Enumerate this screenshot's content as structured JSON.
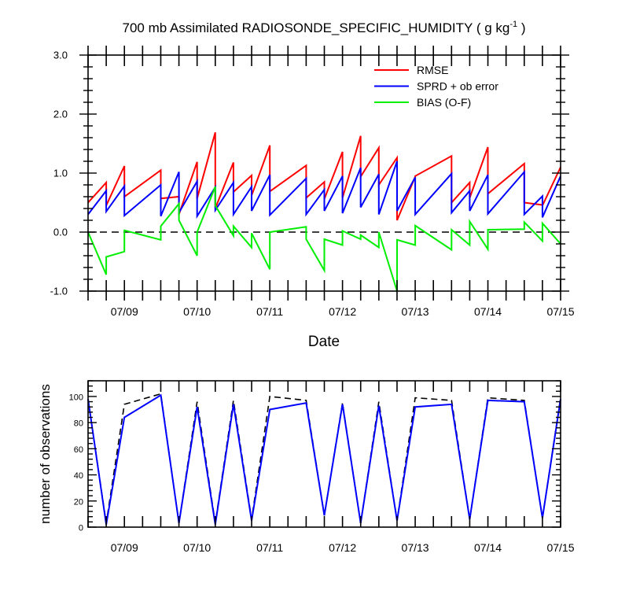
{
  "chart_data": [
    {
      "type": "line",
      "title": "700 mb Assimilated RADIOSONDE_SPECIFIC_HUMIDITY",
      "title_units": "( g kg",
      "title_units_exp": "-1",
      "title_units_close": " )",
      "xlabel": "Date",
      "ylabel": "",
      "xlim": [
        8.5,
        15.0
      ],
      "ylim": [
        -1.0,
        3.0
      ],
      "yticks": [
        "-1.0",
        "0.0",
        "1.0",
        "2.0",
        "3.0"
      ],
      "ytick_values": [
        -1.0,
        0.0,
        1.0,
        2.0,
        3.0
      ],
      "xticks": [
        "07/09",
        "07/10",
        "07/11",
        "07/12",
        "07/13",
        "07/14",
        "07/15"
      ],
      "xtick_values": [
        9,
        10,
        11,
        12,
        13,
        14,
        15
      ],
      "zero_line": true,
      "grid": false,
      "legend_position": "top-right",
      "series": [
        {
          "name": "RMSE",
          "color": "#ff0000",
          "x": [
            8.5,
            8.75,
            8.75,
            9.0,
            9.0,
            9.5,
            9.5,
            9.75,
            9.75,
            10.0,
            10.0,
            10.25,
            10.25,
            10.5,
            10.5,
            10.75,
            10.75,
            11.0,
            11.0,
            11.5,
            11.5,
            11.75,
            11.75,
            12.0,
            12.0,
            12.25,
            12.25,
            12.5,
            12.5,
            12.75,
            12.75,
            13.0,
            13.0,
            13.5,
            13.5,
            13.75,
            13.75,
            14.0,
            14.0,
            14.5,
            14.5,
            14.75,
            14.75,
            15.0
          ],
          "y": [
            0.5,
            0.84,
            0.45,
            1.12,
            0.6,
            1.05,
            0.57,
            0.6,
            0.3,
            1.19,
            0.57,
            1.69,
            0.4,
            1.18,
            0.68,
            0.96,
            0.62,
            1.47,
            0.69,
            1.13,
            0.58,
            0.85,
            0.56,
            1.36,
            0.58,
            1.63,
            0.94,
            1.43,
            0.8,
            1.26,
            0.2,
            0.94,
            0.95,
            1.29,
            0.5,
            0.84,
            0.58,
            1.44,
            0.65,
            1.16,
            0.5,
            0.46,
            0.45,
            1.1
          ]
        },
        {
          "name": "SPRD + ob error",
          "color": "#0000ff",
          "x": [
            8.5,
            8.75,
            8.75,
            9.0,
            9.0,
            9.5,
            9.5,
            9.75,
            9.75,
            10.0,
            10.0,
            10.25,
            10.25,
            10.5,
            10.5,
            10.75,
            10.75,
            11.0,
            11.0,
            11.5,
            11.5,
            11.75,
            11.75,
            12.0,
            12.0,
            12.25,
            12.25,
            12.5,
            12.5,
            12.75,
            12.75,
            13.0,
            13.0,
            13.5,
            13.5,
            13.75,
            13.75,
            14.0,
            14.0,
            14.5,
            14.5,
            14.75,
            14.75,
            15.0
          ],
          "y": [
            0.3,
            0.7,
            0.35,
            0.78,
            0.28,
            0.8,
            0.27,
            1.02,
            0.33,
            0.86,
            0.27,
            0.76,
            0.37,
            0.84,
            0.3,
            0.77,
            0.36,
            0.97,
            0.29,
            0.91,
            0.3,
            0.72,
            0.36,
            0.95,
            0.32,
            1.09,
            0.42,
            0.98,
            0.3,
            1.2,
            0.36,
            0.93,
            0.3,
            0.99,
            0.33,
            0.7,
            0.36,
            0.97,
            0.31,
            1.02,
            0.3,
            0.61,
            0.25,
            0.95
          ]
        },
        {
          "name": "BIAS (O-F)",
          "color": "#00ee00",
          "x": [
            8.5,
            8.75,
            8.75,
            9.0,
            9.0,
            9.5,
            9.5,
            9.75,
            9.75,
            10.0,
            10.0,
            10.25,
            10.25,
            10.5,
            10.5,
            10.75,
            10.75,
            11.0,
            11.0,
            11.5,
            11.5,
            11.75,
            11.75,
            12.0,
            12.0,
            12.25,
            12.25,
            12.5,
            12.5,
            12.75,
            12.75,
            13.0,
            13.0,
            13.5,
            13.5,
            13.75,
            13.75,
            14.0,
            14.0,
            14.5,
            14.5,
            14.75,
            14.75,
            15.0
          ],
          "y": [
            0.0,
            -0.72,
            -0.42,
            -0.33,
            0.03,
            -0.13,
            0.1,
            0.48,
            0.2,
            -0.4,
            0.0,
            0.77,
            0.45,
            -0.06,
            0.1,
            -0.26,
            -0.02,
            -0.63,
            0.0,
            0.09,
            -0.12,
            -0.65,
            -0.12,
            -0.22,
            0.02,
            -0.12,
            -0.05,
            -0.26,
            0.0,
            -1.0,
            -0.13,
            -0.22,
            0.11,
            -0.3,
            0.04,
            -0.22,
            0.18,
            -0.29,
            0.04,
            0.05,
            0.17,
            -0.15,
            0.15,
            -0.2
          ]
        }
      ]
    },
    {
      "type": "line",
      "title": "",
      "xlabel": "",
      "ylabel": "number of observations",
      "xlim": [
        8.5,
        15.0
      ],
      "ylim": [
        0,
        112
      ],
      "yticks": [
        "0",
        "20",
        "40",
        "60",
        "80",
        "100"
      ],
      "ytick_values": [
        0,
        20,
        40,
        60,
        80,
        100
      ],
      "xticks": [
        "07/09",
        "07/10",
        "07/11",
        "07/12",
        "07/13",
        "07/14",
        "07/15"
      ],
      "xtick_values": [
        9,
        10,
        11,
        12,
        13,
        14,
        15
      ],
      "grid": false,
      "series": [
        {
          "color": "#000000",
          "dash": true,
          "x": [
            8.5,
            8.75,
            9.0,
            9.5,
            9.75,
            10.0,
            10.25,
            10.5,
            10.75,
            11.0,
            11.5,
            11.75,
            12.0,
            12.25,
            12.5,
            12.75,
            13.0,
            13.5,
            13.75,
            14.0,
            14.5,
            14.75,
            15.0
          ],
          "y": [
            98,
            3,
            94,
            102,
            3,
            96,
            3,
            97,
            6,
            100,
            97,
            9,
            95,
            3,
            96,
            5,
            99,
            97,
            6,
            99,
            97,
            7,
            99
          ]
        },
        {
          "color": "#0000ff",
          "dash": false,
          "x": [
            8.5,
            8.75,
            9.0,
            9.5,
            9.75,
            10.0,
            10.25,
            10.5,
            10.75,
            11.0,
            11.5,
            11.75,
            12.0,
            12.25,
            12.5,
            12.75,
            13.0,
            13.5,
            13.75,
            14.0,
            14.5,
            14.75,
            15.0
          ],
          "y": [
            98,
            2,
            84,
            101,
            3,
            92,
            2,
            94,
            5,
            90,
            95,
            9,
            94,
            3,
            93,
            5,
            92,
            94,
            6,
            97,
            96,
            7,
            98
          ]
        }
      ]
    }
  ]
}
